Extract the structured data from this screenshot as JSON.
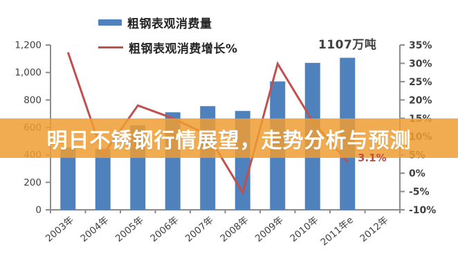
{
  "banner": {
    "title": "明日不锈钢行情展望，走势分析与预测",
    "bg_color": "#EE9D32",
    "text_color": "#FFFFFF"
  },
  "legend": {
    "items": [
      {
        "label": "粗钢表观消费量",
        "marker": "bar-swatch",
        "color": "#4F81BD"
      },
      {
        "label": "粗钢表观消费增长%",
        "marker": "line-swatch",
        "color": "#C0504D"
      }
    ]
  },
  "annotations": {
    "peak_value_label": "1107万吨",
    "last_growth_label": "3.1%"
  },
  "chart_data": {
    "type": "bar",
    "combo": "bar+line",
    "title": "",
    "categories": [
      "2003年",
      "2004年",
      "2005年",
      "2006年",
      "2007年",
      "2008年",
      "2009年",
      "2010年",
      "2011年e",
      "2012年"
    ],
    "series": [
      {
        "name": "粗钢表观消费量",
        "type": "bar",
        "axis": "left",
        "color": "#4F81BD",
        "values": [
          455,
          445,
          615,
          710,
          755,
          720,
          935,
          1070,
          1107,
          null
        ]
      },
      {
        "name": "粗钢表观消费增长%",
        "type": "line",
        "axis": "right",
        "color": "#C0504D",
        "values": [
          33,
          5,
          18.5,
          15,
          10.5,
          -5.3,
          29.9,
          14.2,
          3.1,
          null
        ]
      }
    ],
    "left_axis": {
      "min": 0,
      "max": 1200,
      "step": 200,
      "tick_labels": [
        "0",
        "200",
        "400",
        "600",
        "800",
        "1,000",
        "1,200"
      ]
    },
    "right_axis": {
      "min": -10,
      "max": 35,
      "step": 5,
      "tick_labels": [
        "-10%",
        "-5%",
        "0%",
        "5%",
        "10%",
        "15%",
        "20%",
        "25%",
        "30%",
        "35%"
      ]
    },
    "grid": false,
    "legend_position": "top",
    "axis_color": "#8C8C8C",
    "tick_label_color": "#3F3F3F"
  }
}
